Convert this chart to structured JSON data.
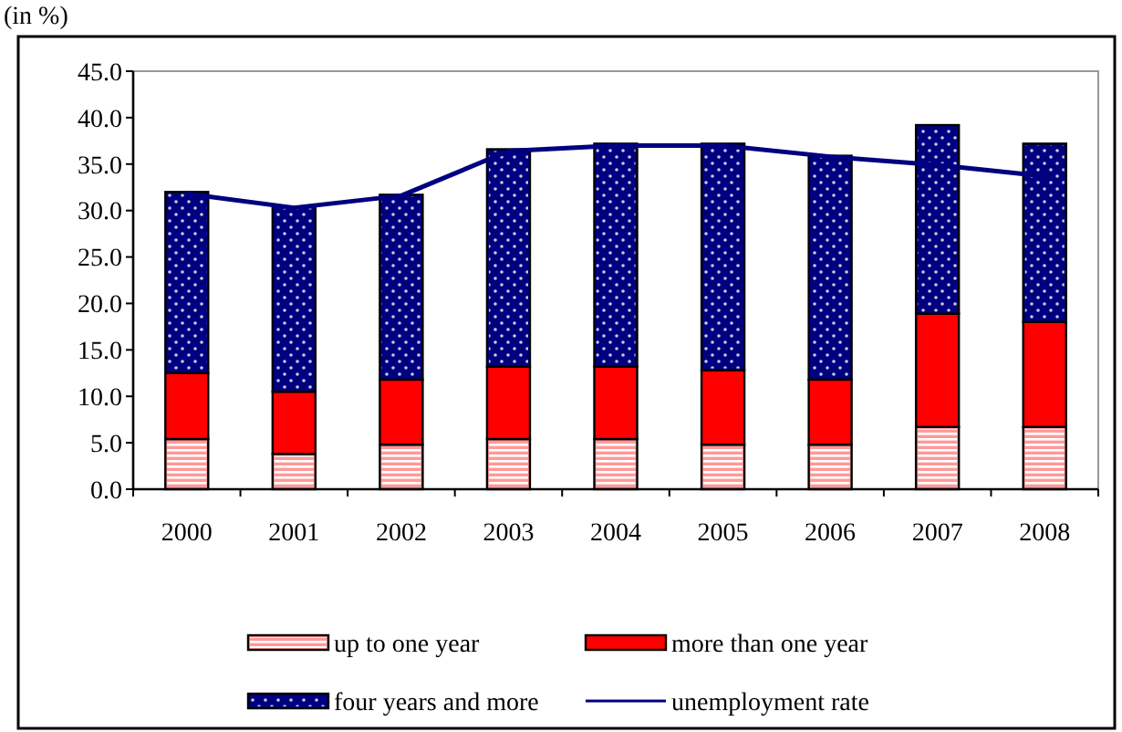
{
  "chart_data": {
    "type": "bar",
    "stacked": true,
    "ylabel": "(in %)",
    "categories": [
      "2000",
      "2001",
      "2002",
      "2003",
      "2004",
      "2005",
      "2006",
      "2007",
      "2008"
    ],
    "series": [
      {
        "name": "up to one year",
        "color": "#ff9999",
        "values": [
          5.4,
          3.8,
          4.8,
          5.4,
          5.4,
          4.8,
          4.8,
          6.7,
          6.7
        ]
      },
      {
        "name": "more than one year",
        "color": "#ff0000",
        "values": [
          7.1,
          6.7,
          7.0,
          7.8,
          7.8,
          8.0,
          7.0,
          12.2,
          11.3
        ]
      },
      {
        "name": "four years and more",
        "color": "#000080",
        "values": [
          19.5,
          19.9,
          19.9,
          23.4,
          24.0,
          24.4,
          24.1,
          20.3,
          19.2
        ]
      },
      {
        "name": "unemployment rate",
        "type": "line",
        "color": "#000080",
        "values": [
          31.8,
          30.3,
          31.6,
          36.4,
          37.0,
          37.0,
          35.8,
          34.9,
          33.7
        ]
      }
    ],
    "ylim": [
      0,
      45
    ],
    "yticks": [
      {
        "value": 0,
        "label": "0.0"
      },
      {
        "value": 5,
        "label": "5.0"
      },
      {
        "value": 10,
        "label": "10.0"
      },
      {
        "value": 15,
        "label": "15.0"
      },
      {
        "value": 20,
        "label": "20.0"
      },
      {
        "value": 25,
        "label": "25.0"
      },
      {
        "value": 30,
        "label": "30.0"
      },
      {
        "value": 35,
        "label": "35.0"
      },
      {
        "value": 40,
        "label": "40.0"
      },
      {
        "value": 45,
        "label": "45.0"
      }
    ],
    "grid": false,
    "legend": "bottom"
  }
}
